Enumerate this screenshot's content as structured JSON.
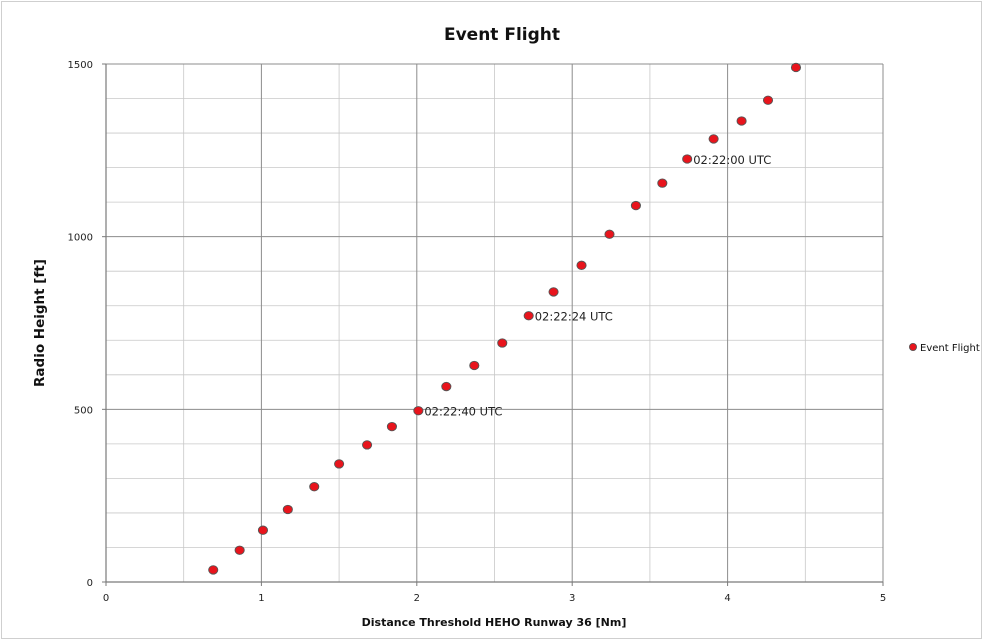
{
  "chart_data": {
    "type": "scatter",
    "title": "Event Flight",
    "xlabel": "Distance Threshold HEHO  Runway 36  [Nm]",
    "ylabel": "Radio Height [ft]",
    "xlim": [
      0,
      5
    ],
    "ylim": [
      0,
      1500
    ],
    "x_ticks": [
      0,
      1,
      2,
      3,
      4,
      5
    ],
    "y_ticks": [
      0,
      500,
      1000,
      1500
    ],
    "x_tick_labels": [
      "0",
      "1",
      "2",
      "3",
      "4",
      "5"
    ],
    "y_tick_labels": [
      "0",
      "500",
      "1000",
      "1500"
    ],
    "grid": true,
    "minor_grid": true,
    "legend": {
      "position": "right",
      "entries": [
        "Event Flight"
      ]
    },
    "series": [
      {
        "name": "Event Flight",
        "color": "#e8141c",
        "edge_color": "#555555",
        "points": [
          {
            "x": 0.69,
            "y": 35
          },
          {
            "x": 0.86,
            "y": 92
          },
          {
            "x": 1.01,
            "y": 150
          },
          {
            "x": 1.17,
            "y": 210
          },
          {
            "x": 1.34,
            "y": 276
          },
          {
            "x": 1.5,
            "y": 342
          },
          {
            "x": 1.68,
            "y": 397
          },
          {
            "x": 1.84,
            "y": 450
          },
          {
            "x": 2.01,
            "y": 496
          },
          {
            "x": 2.19,
            "y": 566
          },
          {
            "x": 2.37,
            "y": 627
          },
          {
            "x": 2.55,
            "y": 692
          },
          {
            "x": 2.72,
            "y": 771
          },
          {
            "x": 2.88,
            "y": 840
          },
          {
            "x": 3.06,
            "y": 917
          },
          {
            "x": 3.24,
            "y": 1007
          },
          {
            "x": 3.41,
            "y": 1090
          },
          {
            "x": 3.58,
            "y": 1155
          },
          {
            "x": 3.74,
            "y": 1225
          },
          {
            "x": 3.91,
            "y": 1283
          },
          {
            "x": 4.09,
            "y": 1335
          },
          {
            "x": 4.26,
            "y": 1395
          },
          {
            "x": 4.44,
            "y": 1490
          }
        ]
      }
    ],
    "annotations": [
      {
        "text": "02:22:40  UTC",
        "x": 2.01,
        "y": 496
      },
      {
        "text": "02:22:24  UTC",
        "x": 2.72,
        "y": 771
      },
      {
        "text": "02:22:00  UTC",
        "x": 3.74,
        "y": 1225
      }
    ]
  }
}
